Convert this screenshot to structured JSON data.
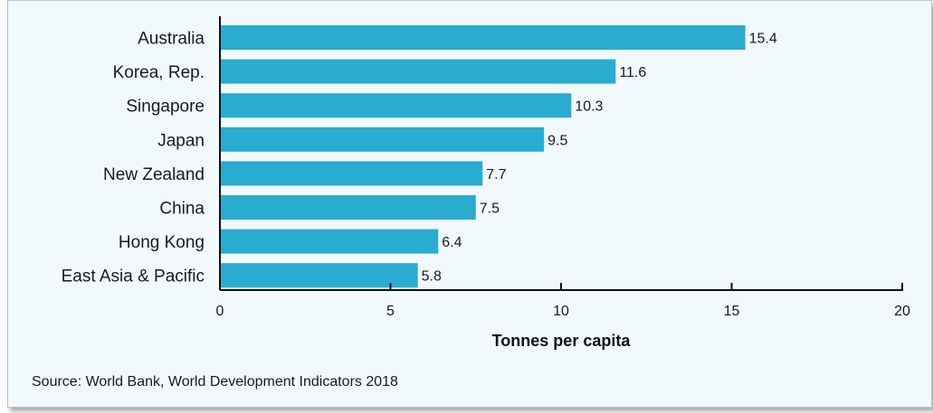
{
  "chart_data": {
    "type": "bar",
    "orientation": "horizontal",
    "categories": [
      "Australia",
      "Korea, Rep.",
      "Singapore",
      "Japan",
      "New Zealand",
      "China",
      "Hong Kong",
      "East Asia & Pacific"
    ],
    "values": [
      15.4,
      11.6,
      10.3,
      9.5,
      7.7,
      7.5,
      6.4,
      5.8
    ],
    "value_labels": [
      "15.4",
      "11.6",
      "10.3",
      "9.5",
      "7.7",
      "7.5",
      "6.4",
      "5.8"
    ],
    "xlabel": "Tonnes per capita",
    "xlim": [
      0,
      20
    ],
    "xticks": [
      0,
      5,
      10,
      15,
      20
    ],
    "grid": false,
    "bar_color": "#29acd0"
  },
  "source": "Source: World Bank, World Development Indicators 2018",
  "colors": {
    "panel_background": "#f2f9fc",
    "bar": "#29acd0",
    "axis": "#111111"
  }
}
